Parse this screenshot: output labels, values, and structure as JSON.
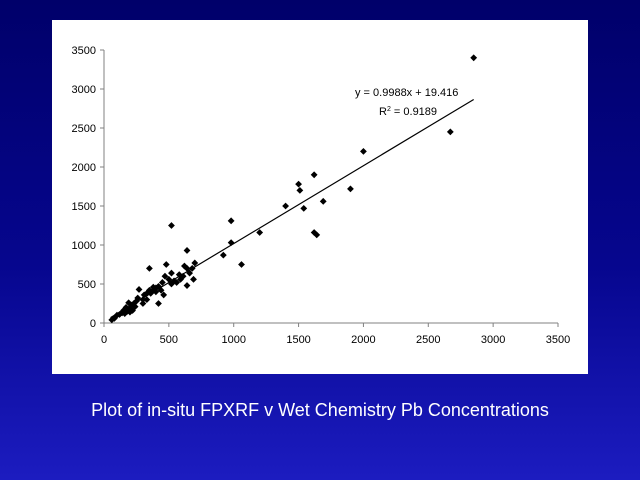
{
  "caption": "Plot of in-situ FPXRF v Wet Chemistry Pb Concentrations",
  "colors": {
    "background": "#00006a",
    "panel": "#ffffff",
    "marker": "#000000",
    "caption": "#ffffff"
  },
  "chart_data": {
    "type": "scatter",
    "title": "",
    "xlabel": "",
    "ylabel": "",
    "xlim": [
      0,
      3500
    ],
    "ylim": [
      0,
      3500
    ],
    "xticks": [
      0,
      500,
      1000,
      1500,
      2000,
      2500,
      3000,
      3500
    ],
    "yticks": [
      0,
      500,
      1000,
      1500,
      2000,
      2500,
      3000,
      3500
    ],
    "grid": false,
    "legend": "none",
    "marker": "diamond",
    "trendline": {
      "slope": 0.9988,
      "intercept": 19.416,
      "x_range": [
        50,
        2850
      ],
      "equation_label": "y = 0.9988x + 19.416",
      "r2_label_prefix": "R",
      "r2_label_sup": "2",
      "r2_label_value": " = 0.9189"
    },
    "points": [
      [
        2850,
        3400
      ],
      [
        2670,
        2450
      ],
      [
        2000,
        2200
      ],
      [
        1900,
        1720
      ],
      [
        1620,
        1900
      ],
      [
        1500,
        1780
      ],
      [
        1510,
        1700
      ],
      [
        1690,
        1560
      ],
      [
        1540,
        1470
      ],
      [
        1400,
        1500
      ],
      [
        1620,
        1160
      ],
      [
        1640,
        1130
      ],
      [
        1200,
        1160
      ],
      [
        980,
        1310
      ],
      [
        980,
        1030
      ],
      [
        920,
        870
      ],
      [
        1060,
        750
      ],
      [
        520,
        1250
      ],
      [
        640,
        930
      ],
      [
        700,
        770
      ],
      [
        680,
        700
      ],
      [
        660,
        640
      ],
      [
        640,
        700
      ],
      [
        620,
        730
      ],
      [
        610,
        600
      ],
      [
        690,
        560
      ],
      [
        640,
        480
      ],
      [
        590,
        560
      ],
      [
        560,
        520
      ],
      [
        520,
        640
      ],
      [
        500,
        560
      ],
      [
        480,
        750
      ],
      [
        470,
        600
      ],
      [
        450,
        520
      ],
      [
        420,
        470
      ],
      [
        380,
        420
      ],
      [
        400,
        400
      ],
      [
        350,
        700
      ],
      [
        350,
        420
      ],
      [
        330,
        380
      ],
      [
        310,
        360
      ],
      [
        300,
        300
      ],
      [
        270,
        430
      ],
      [
        260,
        320
      ],
      [
        250,
        280
      ],
      [
        230,
        250
      ],
      [
        210,
        230
      ],
      [
        200,
        190
      ],
      [
        190,
        260
      ],
      [
        180,
        150
      ],
      [
        170,
        200
      ],
      [
        150,
        160
      ],
      [
        140,
        130
      ],
      [
        120,
        110
      ],
      [
        100,
        100
      ],
      [
        80,
        60
      ],
      [
        60,
        40
      ],
      [
        420,
        250
      ],
      [
        380,
        460
      ],
      [
        440,
        420
      ],
      [
        360,
        380
      ],
      [
        540,
        540
      ],
      [
        580,
        620
      ],
      [
        300,
        250
      ],
      [
        240,
        210
      ],
      [
        220,
        160
      ],
      [
        160,
        120
      ],
      [
        200,
        140
      ],
      [
        460,
        360
      ],
      [
        520,
        500
      ],
      [
        400,
        450
      ],
      [
        330,
        300
      ]
    ]
  }
}
